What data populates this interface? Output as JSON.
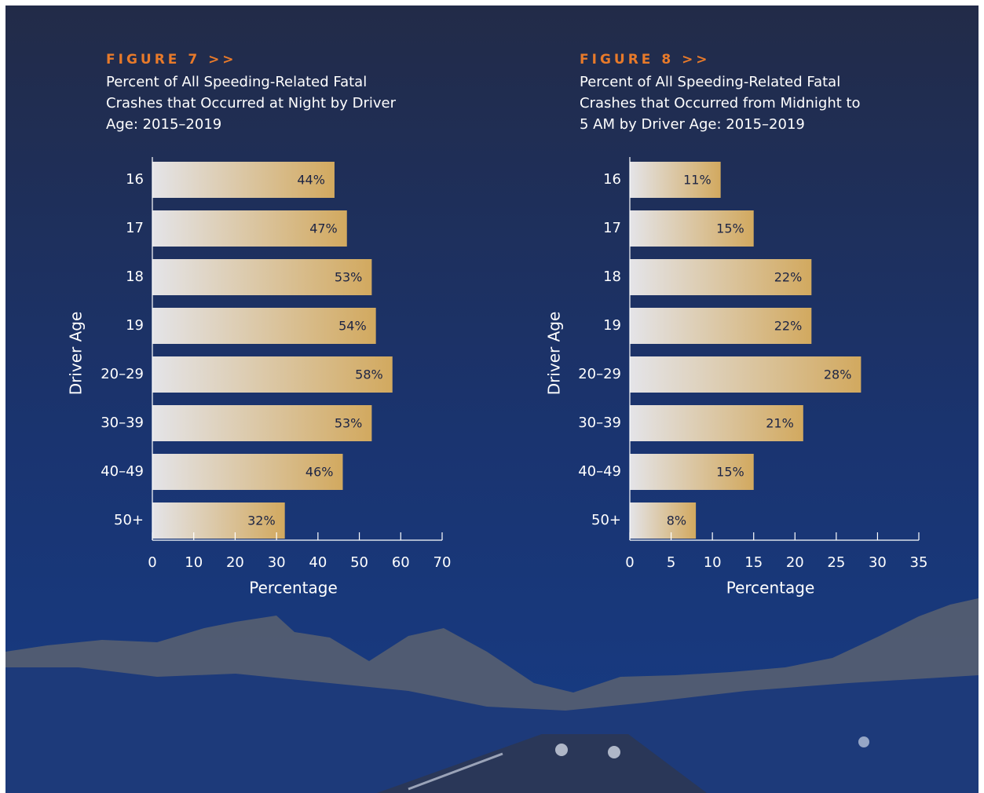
{
  "chart_data": [
    {
      "type": "bar",
      "orientation": "horizontal",
      "label": "FIGURE 7 >>",
      "title_lines": [
        "Percent of All Speeding-Related Fatal",
        "Crashes that Occurred at Night by Driver",
        "Age: 2015–2019"
      ],
      "categories": [
        "16",
        "17",
        "18",
        "19",
        "20–29",
        "30–39",
        "40–49",
        "50+"
      ],
      "values": [
        44,
        47,
        53,
        54,
        58,
        53,
        46,
        32
      ],
      "value_labels": [
        "44%",
        "47%",
        "53%",
        "54%",
        "58%",
        "53%",
        "46%",
        "32%"
      ],
      "ylabel": "Driver Age",
      "xlabel": "Percentage",
      "xlim": [
        0,
        70
      ],
      "xticks": [
        0,
        10,
        20,
        30,
        40,
        50,
        60,
        70
      ],
      "color": [
        "#e4e4e8",
        "#d2a95f"
      ]
    },
    {
      "type": "bar",
      "orientation": "horizontal",
      "label": "FIGURE 8 >>",
      "title_lines": [
        "Percent of All Speeding-Related Fatal",
        "Crashes that Occurred from Midnight to",
        "5 AM by Driver Age: 2015–2019"
      ],
      "categories": [
        "16",
        "17",
        "18",
        "19",
        "20–29",
        "30–39",
        "40–49",
        "50+"
      ],
      "values": [
        11,
        15,
        22,
        22,
        28,
        21,
        15,
        8
      ],
      "value_labels": [
        "11%",
        "15%",
        "22%",
        "22%",
        "28%",
        "21%",
        "15%",
        "8%"
      ],
      "ylabel": "Driver Age",
      "xlabel": "Percentage",
      "xlim": [
        0,
        35
      ],
      "xticks": [
        0,
        5,
        10,
        15,
        20,
        25,
        30,
        35
      ],
      "color": [
        "#e4e4e8",
        "#d2a95f"
      ]
    }
  ]
}
